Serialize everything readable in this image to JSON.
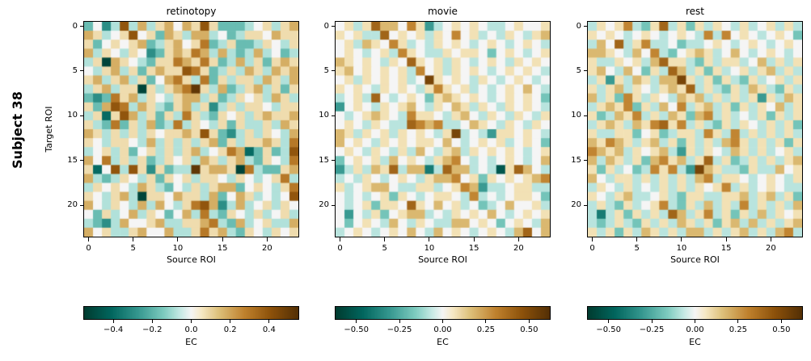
{
  "figure": {
    "row_label": "Subject 38",
    "ylabel": "Target ROI",
    "xlabel": "Source ROI",
    "colorbar_label": "EC"
  },
  "value_encoding": {
    "i": -0.52,
    "h": -0.4,
    "g": -0.3,
    "f": -0.18,
    "e": -0.08,
    "0": 0.0,
    "E": 0.08,
    "F": 0.18,
    "G": 0.3,
    "H": 0.4,
    "I": 0.52
  },
  "colormap": {
    "name": "BrBG_r (teal-white-brown)",
    "stops": [
      [
        -1.0,
        "#003c30"
      ],
      [
        -0.75,
        "#01665e"
      ],
      [
        -0.5,
        "#35978f"
      ],
      [
        -0.25,
        "#80cdc1"
      ],
      [
        -0.1,
        "#c7eae5"
      ],
      [
        0.0,
        "#f5f5f5"
      ],
      [
        0.1,
        "#f6e8c3"
      ],
      [
        0.25,
        "#dfc27d"
      ],
      [
        0.5,
        "#bf812d"
      ],
      [
        0.75,
        "#8c510a"
      ],
      [
        1.0,
        "#543005"
      ]
    ]
  },
  "chart_data": [
    {
      "type": "heatmap",
      "title": "retinotopy",
      "xlabel": "Source ROI",
      "ylabel": "Target ROI",
      "n_rows": 24,
      "n_cols": 24,
      "x_ticks": [
        0,
        5,
        10,
        15,
        20
      ],
      "y_ticks": [
        0,
        5,
        10,
        15,
        20
      ],
      "vmin": -0.55,
      "vmax": 0.55,
      "colorbar": {
        "label": "EC",
        "tick_labels": [
          "−0.4",
          "−0.2",
          "0.0",
          "0.2",
          "0.4"
        ],
        "tick_values": [
          -0.4,
          -0.2,
          0.0,
          0.2,
          0.4
        ]
      },
      "matrix_encoded": [
        "f0geHeFeEF0FEHEfffe0EeEF",
        "FEe0EH0EfFEeFFe0feEE0FEE",
        "Ef0E0EFfeEF0EGfeEffeE0eE",
        "FeE0eE0gfEFEGFeFefeFe0fe",
        "eEiFE0efEEGFEGEfeFeEfEFE",
        "0eEFeEfEFEEHGEfeEeFEeFEF",
        "EFeEFeEf0FGEeGfEeEEeFEeF",
        "eEFeEEiEeEFGIEeFfeEFeEfE",
        "fgfGEFeE0eEFFeEfeE0EeFEe",
        "EfFHGeFEefEFeEgeEeEE0eEE",
        "eEhEHFeEfEeGEefE0EeEFEEF",
        "EefGfEeFfeGeE0eEfEeeEeFE",
        "FEeEeEeE0EEFEHEfgeEeE0eF",
        "E0eEE0eFeEeEeEFfEeEEFEeG",
        "e0EeEf0EeEeEFe0EGFhfEfeH",
        "F0GeEeEfeE0EeFEeEFefE0eG",
        "Eh0HeHEgEfeeIEFFEiGeffEF",
        "FefeE0eEfE0EeEE0eE0e0EGe",
        "eE0E0eFEef0eEeEFFf0E0eEG",
        "E0eEFeiEE0FEEeFf0FEe0e0H",
        "F0eE0eFeF0eEGHFgeFe0EeE0",
        "0fEe0FeE0f0FeGefE0eEe0Ee",
        "efgeF00EFeeEEFGefFe0EeeF",
        "F0EeeEF00FeeEGEFefE0eE0E"
      ]
    },
    {
      "type": "heatmap",
      "title": "movie",
      "xlabel": "Source ROI",
      "ylabel": "",
      "n_rows": 24,
      "n_cols": 24,
      "x_ticks": [
        0,
        5,
        10,
        15,
        20
      ],
      "y_ticks": [
        0,
        5,
        10,
        15,
        20
      ],
      "vmin": -0.62,
      "vmax": 0.62,
      "colorbar": {
        "label": "EC",
        "tick_labels": [
          "−0.50",
          "−0.25",
          "0.00",
          "0.25",
          "0.50"
        ],
        "tick_values": [
          -0.5,
          -0.25,
          0.0,
          0.25,
          0.5
        ]
      },
      "matrix_encoded": [
        "0EeEHFF0GEge0E0E0ee0E00E",
        "E0EeeH0E0EeE0G0Ee0eE0eEF",
        "0EeFE0GEe0eE0E0e0E0e0E0e",
        "0E0e0EeGE0eeE0EE0f0E0e0E",
        "FE0E0eE0HE0EeE0e0E0eE0E0",
        "EF0E0E0EeG0EeE0E0e0E0E0e",
        "0EeE0E0Ee0IE0E0eE0e0E0e0",
        "E0E0eE0E0eEGE0Ee0e0E0F0e",
        "e0EeH0e0E0fEFE0E0e0E0E0f",
        "g0E0eE0EF0eE0FEeE0eE0E0e",
        "0e0EFE0eGEE0eEF0eE0eE0eE",
        "0E0eE0eeHGFGee0FE0eE0eE0",
        "FEeE0EeE0E0eEIe0egEE0E0e",
        "F0E0eE0E0EE0F0e0E0Ee0E0f",
        "0E0eE0eEeF0eEFeE0E0E0e0E",
        "f0E0EeF0E0eEFG0e0e0E0e0F",
        "geEeFEHeFFheHFFe0eiEHF0e",
        "e0eE0e0E0eEFFG0EfE0E0EFG",
        "Ee0EFF0eeEEe0EGFgee0EEee",
        "0e0e0EfE0e0EE0eGe0e0EE0f",
        "0e0EfEE0HE0F0Ee0fe0F00Ee",
        "0g0eEf0EFFe0eE0E0F0e0E0E",
        "0f0E0eF0eE0eeFF0E0f0E0eF",
        "e0E0e0E0F0eF0E0e0E0eFH0F"
      ]
    },
    {
      "type": "heatmap",
      "title": "rest",
      "xlabel": "Source ROI",
      "ylabel": "",
      "n_rows": 24,
      "n_cols": 24,
      "x_ticks": [
        0,
        5,
        10,
        15,
        20
      ],
      "y_ticks": [
        0,
        5,
        10,
        15,
        20
      ],
      "vmin": -0.62,
      "vmax": 0.62,
      "colorbar": {
        "label": "EC",
        "tick_labels": [
          "−0.50",
          "−0.25",
          "0.00",
          "0.25",
          "0.50"
        ],
        "tick_values": [
          -0.5,
          -0.25,
          0.0,
          0.25,
          0.5
        ]
      },
      "matrix_encoded": [
        "eE0EGefEHeEfEeE0eEe0EeEe",
        "E0E0e0E0e0E0eGeG0E0e0E0f",
        "eF0HeEGee0fee0E0e0E0e0E0",
        "FFE0eF0Gef0EFEe0F0e0E0e0",
        "EeeE0EeFHEEefEeEEe0FeEeE",
        "EF0eF0fEeHFeEfEe0EeEFeEe",
        "eEgEeFEeFFIEeEfEefEe0EeE",
        "EeEFeE0eEFEHeEefEeFEefEe",
        "FeEfGEeE0eFEFeEeEeEgEeFE",
        "eEFEGfEeF0GeEFeEfEeE0FeE",
        "EfeFEGeEeFEfFGeEe0eEfEeE",
        "eEFEeFEGHEGeEefEeE0eEeEf",
        "EeeEEf0EfeEEeGEeGeEeEeEe",
        "FEGFEeEFeEfEeEeFGEeEeEfE",
        "GFEFeE0EFegEeE0eFEeEe0Ee",
        "FeFEeEfFGEFeEHeEfeEeEeEF",
        "EfEe0feGEGegIFEeefEeeF0E",
        "F0eEEeEeEeEeFGeEE0e0E0eE",
        "eE0eEe0eEeEeE0EGeEe0E0ee",
        "E0eEFee0EefEEeeEEFeEFeEf",
        "eEefEe0EGefEeFeEeGeEeEeF",
        "eheEfEeEeHFeEGeEfEeFeE0E",
        "efeEefEeEeFEeEfEFeFeEeEF",
        "EeEfEeFEeEeFFeEeEFeEeFGe"
      ]
    }
  ]
}
